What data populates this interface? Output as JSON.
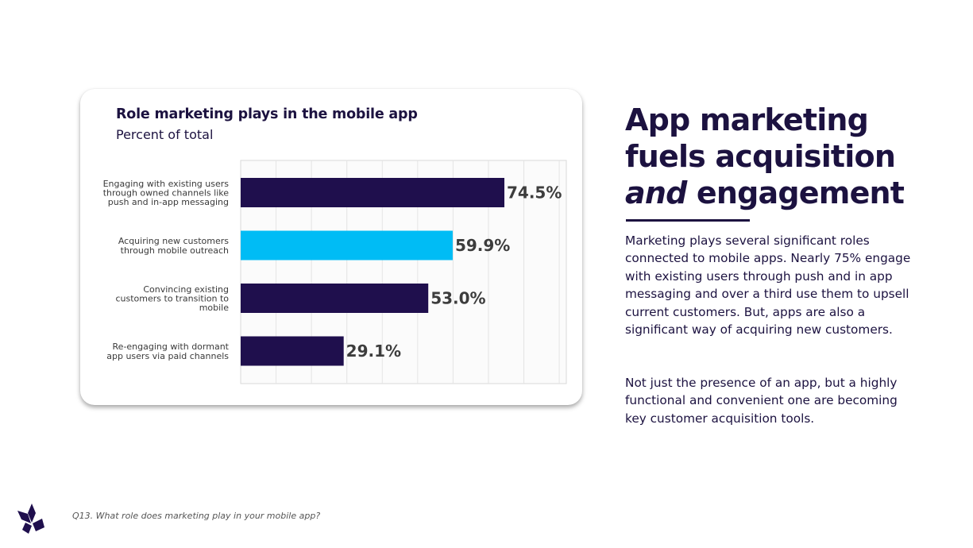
{
  "headline": {
    "line1": "App marketing",
    "line2": "fuels acquisition",
    "line3_em": "and",
    "line3_rest": " engagement"
  },
  "body": {
    "paragraph1": "Marketing plays several significant roles connected to mobile apps.  Nearly 75% engage with existing users through push and in app messaging and over a third use them to upsell current customers. But, apps are also a significant way of acquiring new customers.",
    "paragraph2": "Not just the presence of an app, but a highly functional and convenient one are becoming key customer acquisition tools."
  },
  "footnote": "Q13. What role does marketing play in your mobile app?",
  "colors": {
    "navy": "#1f0f4d",
    "cyan": "#00bcf5"
  },
  "chart_data": {
    "type": "bar",
    "orientation": "horizontal",
    "title": "Role marketing plays in the mobile app",
    "subtitle": "Percent of total",
    "xlabel": "",
    "ylabel": "",
    "xlim": [
      0,
      92
    ],
    "categories": [
      [
        "Engaging with existing users",
        "through owned channels like",
        "push and in-app messaging"
      ],
      [
        "Acquiring new customers",
        "through mobile outreach"
      ],
      [
        "Convincing existing",
        "customers to transition to",
        "mobile"
      ],
      [
        "Re-engaging with dormant",
        "app users via paid channels"
      ]
    ],
    "values": [
      74.5,
      59.9,
      53.0,
      29.1
    ],
    "value_labels": [
      "74.5%",
      "59.9%",
      "53.0%",
      "29.1%"
    ],
    "bar_colors": [
      "#1f0f4d",
      "#00bcf5",
      "#1f0f4d",
      "#1f0f4d"
    ],
    "grid": true
  }
}
